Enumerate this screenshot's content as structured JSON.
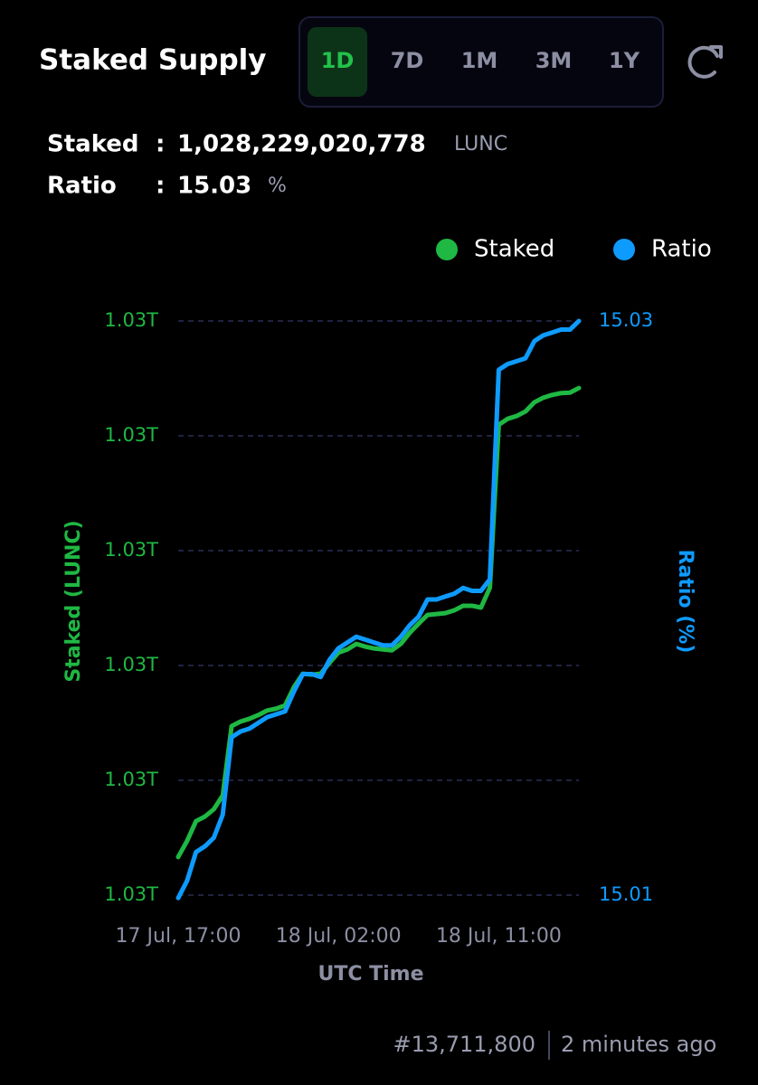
{
  "header": {
    "title": "Staked Supply",
    "tabs": [
      "1D",
      "7D",
      "1M",
      "3M",
      "1Y"
    ],
    "active_tab": 0
  },
  "stats": {
    "staked_label": "Staked",
    "staked_sep": ":",
    "staked_value": "1,028,229,020,778",
    "staked_unit": "LUNC",
    "ratio_label": "Ratio",
    "ratio_sep": ":",
    "ratio_value": "15.03",
    "ratio_unit": "%"
  },
  "chart_data": {
    "type": "line",
    "x_label": "UTC Time",
    "y_label": "Staked (LUNC)",
    "y2_label": "Ratio (%)",
    "legend": "top-right",
    "grid": true,
    "categories": [
      "17 Jul, 17:00",
      null,
      null,
      null,
      null,
      null,
      null,
      null,
      null,
      null,
      null,
      null,
      null,
      null,
      null,
      null,
      null,
      null,
      "18 Jul, 02:00",
      null,
      null,
      null,
      null,
      null,
      null,
      null,
      null,
      null,
      null,
      null,
      null,
      null,
      null,
      null,
      null,
      null,
      "18 Jul, 11:00",
      null,
      null,
      null,
      null,
      null,
      null,
      null,
      null,
      null
    ],
    "ylim": [
      1027125000000,
      1028375000000
    ],
    "yticks": [
      {
        "value": 1027125000000,
        "label": "1.03T"
      },
      {
        "value": 1027375000000,
        "label": "1.03T"
      },
      {
        "value": 1027625000000,
        "label": "1.03T"
      },
      {
        "value": 1027875000000,
        "label": "1.03T"
      },
      {
        "value": 1028125000000,
        "label": "1.03T"
      },
      {
        "value": 1028375000000,
        "label": "1.03T"
      }
    ],
    "y2lim": [
      15.01,
      15.03
    ],
    "y2ticks": [
      15.01,
      15.03
    ],
    "series": [
      {
        "name": "Staked",
        "color": "#1fb843",
        "values": [
          1027208000000,
          1027243000000,
          1027286000000,
          1027296000000,
          1027312000000,
          1027342000000,
          1027493000000,
          1027503000000,
          1027509000000,
          1027517000000,
          1027527000000,
          1027531000000,
          1027538000000,
          1027578000000,
          1027607000000,
          1027605000000,
          1027607000000,
          1027631000000,
          1027653000000,
          1027660000000,
          1027672000000,
          1027666000000,
          1027662000000,
          1027660000000,
          1027658000000,
          1027672000000,
          1027696000000,
          1027716000000,
          1027735000000,
          1027737000000,
          1027739000000,
          1027745000000,
          1027755000000,
          1027755000000,
          1027751000000,
          1027794000000,
          1028149000000,
          1028162000000,
          1028168000000,
          1028178000000,
          1028198000000,
          1028208000000,
          1028214000000,
          1028218000000,
          1028219000000,
          1028229020778
        ]
      },
      {
        "name": "Ratio",
        "color": "#0e9bff",
        "axis": "y2",
        "values": [
          15.0099,
          15.0105,
          15.0115,
          15.0117,
          15.012,
          15.0128,
          15.0155,
          15.0157,
          15.0158,
          15.016,
          15.0162,
          15.0163,
          15.0164,
          15.0171,
          15.0177,
          15.0177,
          15.0176,
          15.0182,
          15.0186,
          15.0188,
          15.019,
          15.0189,
          15.0188,
          15.0187,
          15.0187,
          15.019,
          15.0194,
          15.0197,
          15.0203,
          15.0203,
          15.0204,
          15.0205,
          15.0207,
          15.0206,
          15.0206,
          15.021,
          15.0283,
          15.0285,
          15.0286,
          15.0287,
          15.0293,
          15.0295,
          15.0296,
          15.0297,
          15.0297,
          15.03
        ]
      }
    ]
  },
  "footer": {
    "block": "#13,711,800",
    "updated": "2 minutes ago"
  }
}
